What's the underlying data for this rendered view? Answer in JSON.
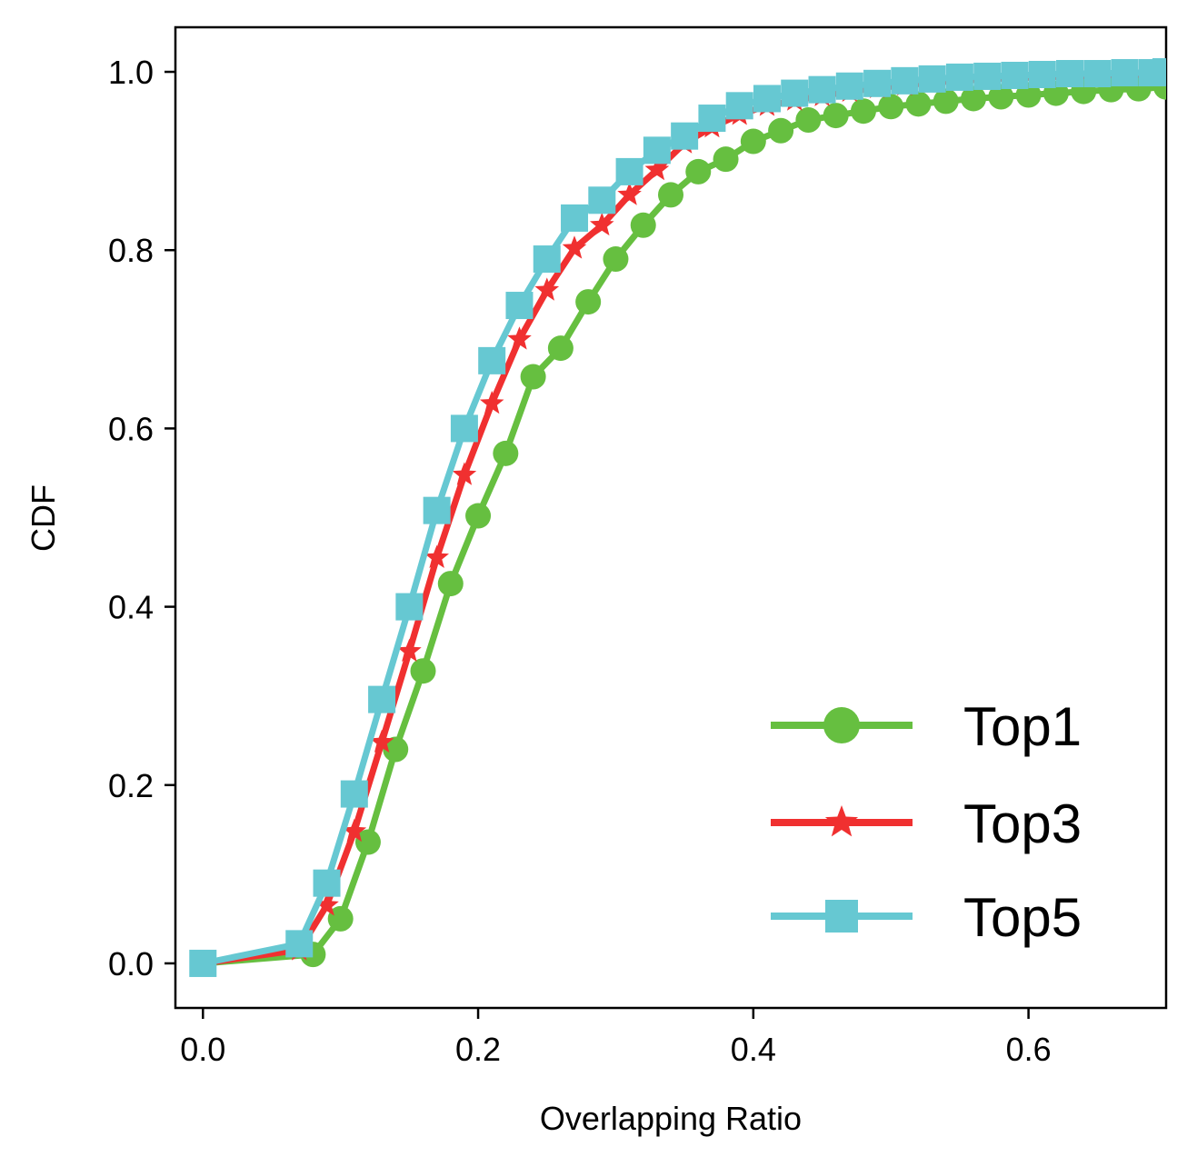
{
  "chart_data": {
    "type": "line",
    "title": "",
    "xlabel": "Overlapping Ratio",
    "ylabel": "CDF",
    "xlim": [
      -0.02,
      0.7
    ],
    "ylim": [
      -0.05,
      1.05
    ],
    "xticks": [
      0.0,
      0.2,
      0.4,
      0.6
    ],
    "xtick_labels": [
      "0.0",
      "0.2",
      "0.4",
      "0.6"
    ],
    "yticks": [
      0.0,
      0.2,
      0.4,
      0.6,
      0.8,
      1.0
    ],
    "ytick_labels": [
      "0.0",
      "0.2",
      "0.4",
      "0.6",
      "0.8",
      "1.0"
    ],
    "grid": false,
    "legend_position": "bottom-right",
    "series": [
      {
        "name": "Top1",
        "color": "#66bf40",
        "marker": "circle",
        "x": [
          0.0,
          0.08,
          0.1,
          0.12,
          0.14,
          0.16,
          0.18,
          0.2,
          0.22,
          0.24,
          0.26,
          0.28,
          0.3,
          0.32,
          0.34,
          0.36,
          0.38,
          0.4,
          0.42,
          0.44,
          0.46,
          0.48,
          0.5,
          0.52,
          0.54,
          0.56,
          0.58,
          0.6,
          0.62,
          0.64,
          0.66,
          0.68,
          0.7
        ],
        "y": [
          0.0,
          0.01,
          0.05,
          0.136,
          0.24,
          0.328,
          0.426,
          0.502,
          0.572,
          0.658,
          0.69,
          0.742,
          0.79,
          0.828,
          0.862,
          0.888,
          0.902,
          0.922,
          0.934,
          0.946,
          0.951,
          0.956,
          0.961,
          0.964,
          0.967,
          0.97,
          0.972,
          0.974,
          0.976,
          0.978,
          0.98,
          0.981,
          0.983
        ]
      },
      {
        "name": "Top3",
        "color": "#f03030",
        "marker": "star",
        "x": [
          0.0,
          0.07,
          0.09,
          0.11,
          0.13,
          0.15,
          0.17,
          0.19,
          0.21,
          0.23,
          0.25,
          0.27,
          0.29,
          0.31,
          0.33,
          0.35,
          0.37,
          0.39,
          0.41,
          0.43,
          0.45,
          0.47,
          0.49,
          0.51,
          0.53,
          0.55,
          0.57,
          0.59,
          0.61,
          0.63,
          0.65,
          0.67,
          0.69
        ],
        "y": [
          0.0,
          0.015,
          0.065,
          0.148,
          0.248,
          0.35,
          0.455,
          0.548,
          0.628,
          0.7,
          0.755,
          0.802,
          0.828,
          0.862,
          0.89,
          0.92,
          0.938,
          0.952,
          0.962,
          0.968,
          0.973,
          0.978,
          0.982,
          0.985,
          0.988,
          0.99,
          0.992,
          0.993,
          0.994,
          0.995,
          0.996,
          0.997,
          0.997
        ]
      },
      {
        "name": "Top5",
        "color": "#66c8d2",
        "marker": "square",
        "x": [
          0.0,
          0.07,
          0.09,
          0.11,
          0.13,
          0.15,
          0.17,
          0.19,
          0.21,
          0.23,
          0.25,
          0.27,
          0.29,
          0.31,
          0.33,
          0.35,
          0.37,
          0.39,
          0.41,
          0.43,
          0.45,
          0.47,
          0.49,
          0.51,
          0.53,
          0.55,
          0.57,
          0.59,
          0.61,
          0.63,
          0.65,
          0.67,
          0.69,
          0.7
        ],
        "y": [
          0.0,
          0.022,
          0.09,
          0.19,
          0.296,
          0.4,
          0.508,
          0.6,
          0.676,
          0.738,
          0.79,
          0.836,
          0.856,
          0.888,
          0.912,
          0.928,
          0.948,
          0.962,
          0.97,
          0.976,
          0.98,
          0.984,
          0.987,
          0.99,
          0.992,
          0.994,
          0.995,
          0.996,
          0.997,
          0.998,
          0.998,
          0.999,
          0.999,
          1.0
        ]
      }
    ]
  }
}
